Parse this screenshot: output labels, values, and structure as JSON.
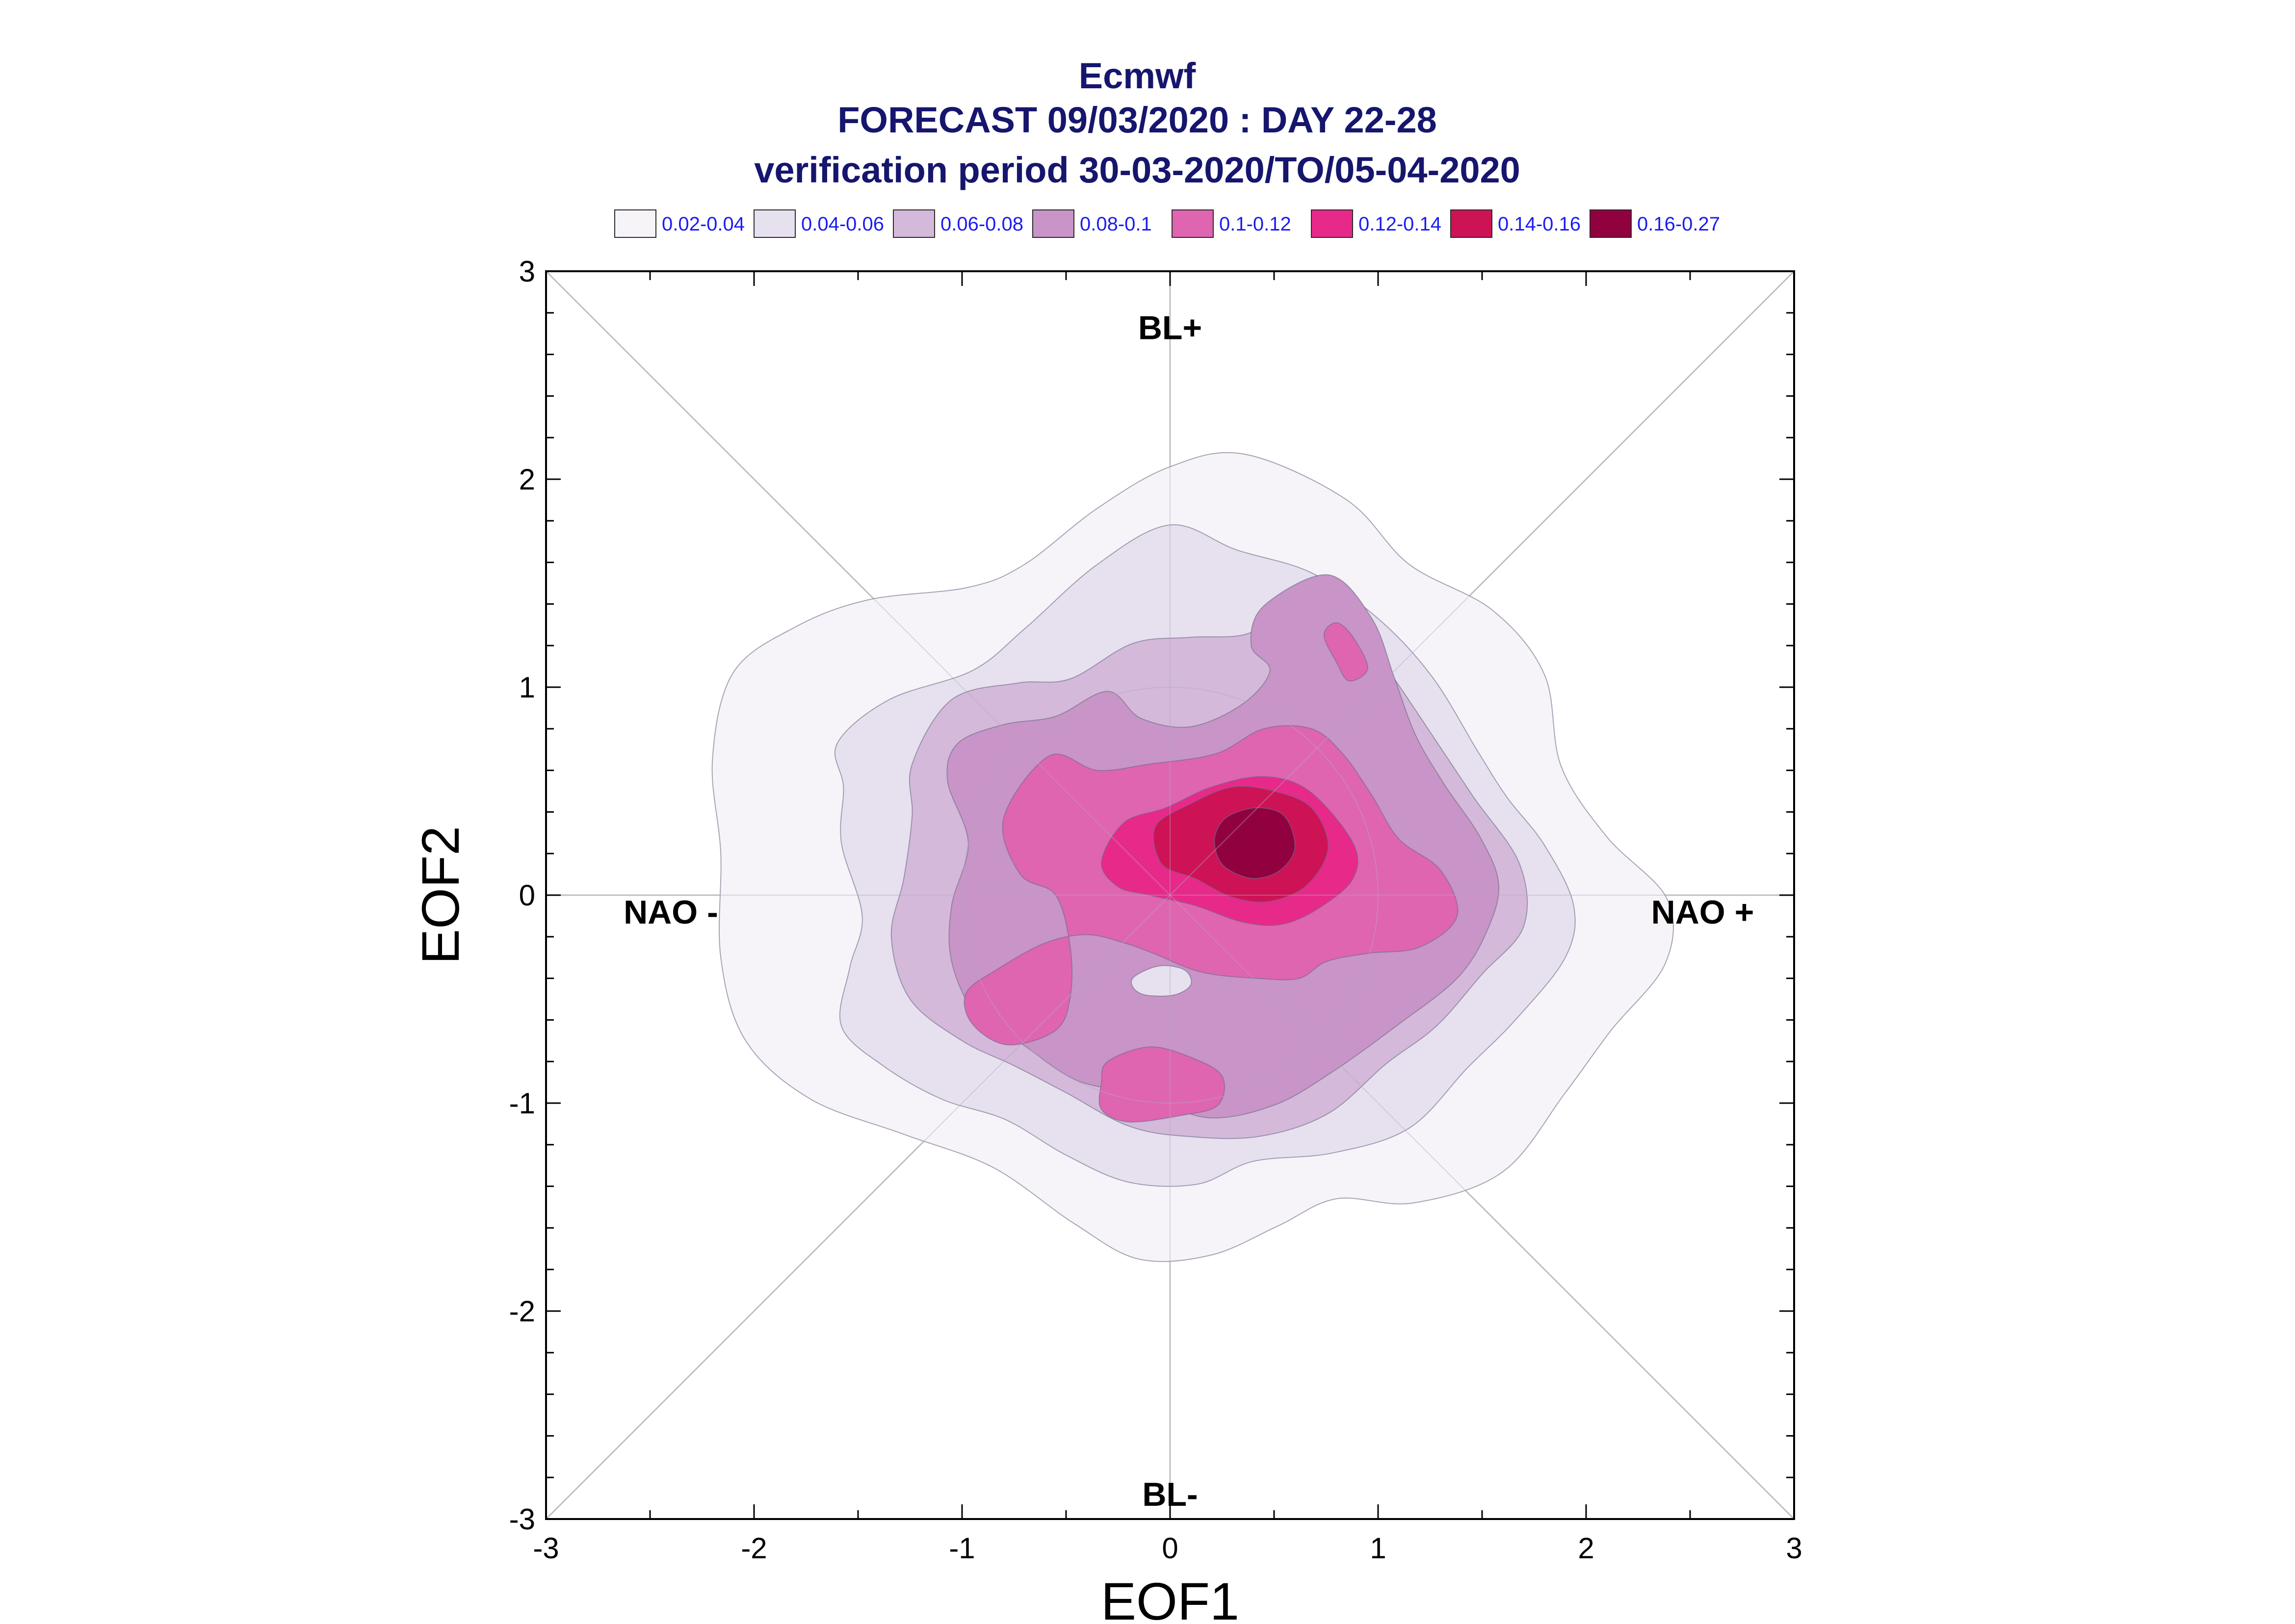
{
  "chart_data": {
    "type": "contour",
    "title": [
      "Ecmwf",
      "FORECAST 09/03/2020 : DAY 22-28",
      "verification period 30-03-2020/TO/05-04-2020"
    ],
    "xlabel": "EOF1",
    "ylabel": "EOF2",
    "xlim": [
      -3,
      3
    ],
    "ylim": [
      -3,
      3
    ],
    "xticks": [
      -3,
      -2,
      -1,
      0,
      1,
      2,
      3
    ],
    "yticks": [
      -3,
      -2,
      -1,
      0,
      1,
      2,
      3
    ],
    "xtick_labels": [
      "-3",
      "-2",
      "-1",
      "0",
      "1",
      "2",
      "3"
    ],
    "ytick_labels": [
      "-3",
      "-2",
      "-1",
      "0",
      "1",
      "2",
      "3"
    ],
    "legend": [
      {
        "label": "0.02-0.04",
        "color": "#f7f4f9"
      },
      {
        "label": "0.04-0.06",
        "color": "#e7e1ef"
      },
      {
        "label": "0.06-0.08",
        "color": "#d4b9da"
      },
      {
        "label": "0.08-0.1",
        "color": "#c994c7"
      },
      {
        "label": "0.1-0.12",
        "color": "#df65b0"
      },
      {
        "label": "0.12-0.14",
        "color": "#e7298a"
      },
      {
        "label": "0.14-0.16",
        "color": "#ce1256"
      },
      {
        "label": "0.16-0.27",
        "color": "#91003f"
      }
    ],
    "legend_position": "top",
    "region_labels": [
      {
        "text": "BL+",
        "x": 0,
        "y": 2.73
      },
      {
        "text": "BL-",
        "x": 0,
        "y": -2.88
      },
      {
        "text": "NAO -",
        "x": -2.4,
        "y": -0.08
      },
      {
        "text": "NAO +",
        "x": 2.56,
        "y": -0.08
      }
    ],
    "levels": [
      {
        "color": "#f7f4f9",
        "paths": [
          [
            [
              -2.1,
              1.07
            ],
            [
              -1.8,
              1.29
            ],
            [
              -1.45,
              1.42
            ],
            [
              -0.97,
              1.48
            ],
            [
              -0.7,
              1.59
            ],
            [
              -0.35,
              1.86
            ],
            [
              0,
              2.06
            ],
            [
              0.36,
              2.12
            ],
            [
              0.85,
              1.9
            ],
            [
              1.15,
              1.59
            ],
            [
              1.55,
              1.37
            ],
            [
              1.8,
              1.06
            ],
            [
              1.88,
              0.62
            ],
            [
              2.1,
              0.28
            ],
            [
              2.39,
              -0.02
            ],
            [
              2.38,
              -0.33
            ],
            [
              2.12,
              -0.65
            ],
            [
              1.9,
              -0.95
            ],
            [
              1.6,
              -1.33
            ],
            [
              1.17,
              -1.48
            ],
            [
              0.8,
              -1.46
            ],
            [
              0.52,
              -1.59
            ],
            [
              0.2,
              -1.73
            ],
            [
              -0.15,
              -1.75
            ],
            [
              -0.46,
              -1.58
            ],
            [
              -0.85,
              -1.31
            ],
            [
              -1.28,
              -1.15
            ],
            [
              -1.73,
              -0.98
            ],
            [
              -2.04,
              -0.7
            ],
            [
              -2.16,
              -0.3
            ],
            [
              -2.16,
              0.2
            ],
            [
              -2.2,
              0.65
            ]
          ]
        ]
      },
      {
        "color": "#e7e1ef",
        "paths": [
          [
            [
              -1.6,
              0.73
            ],
            [
              -1.35,
              0.94
            ],
            [
              -0.95,
              1.08
            ],
            [
              -0.7,
              1.28
            ],
            [
              -0.35,
              1.59
            ],
            [
              0,
              1.78
            ],
            [
              0.32,
              1.66
            ],
            [
              0.68,
              1.55
            ],
            [
              1,
              1.33
            ],
            [
              1.26,
              1.05
            ],
            [
              1.48,
              0.69
            ],
            [
              1.62,
              0.47
            ],
            [
              1.8,
              0.24
            ],
            [
              1.94,
              -0.05
            ],
            [
              1.9,
              -0.3
            ],
            [
              1.66,
              -0.6
            ],
            [
              1.43,
              -0.83
            ],
            [
              1.15,
              -1.12
            ],
            [
              0.78,
              -1.24
            ],
            [
              0.4,
              -1.28
            ],
            [
              0.13,
              -1.39
            ],
            [
              -0.2,
              -1.38
            ],
            [
              -0.5,
              -1.25
            ],
            [
              -0.79,
              -1.08
            ],
            [
              -1.1,
              -0.98
            ],
            [
              -1.38,
              -0.82
            ],
            [
              -1.58,
              -0.63
            ],
            [
              -1.54,
              -0.35
            ],
            [
              -1.48,
              -0.1
            ],
            [
              -1.58,
              0.25
            ],
            [
              -1.57,
              0.52
            ]
          ]
        ]
      },
      {
        "color": "#d4b9da",
        "paths": [
          [
            [
              -1.24,
              0.63
            ],
            [
              -1.05,
              0.94
            ],
            [
              -0.73,
              1.02
            ],
            [
              -0.48,
              1.04
            ],
            [
              -0.18,
              1.21
            ],
            [
              0.1,
              1.24
            ],
            [
              0.38,
              1.26
            ],
            [
              0.58,
              1.42
            ],
            [
              0.85,
              1.34
            ],
            [
              1.05,
              1.08
            ],
            [
              1.26,
              0.77
            ],
            [
              1.46,
              0.47
            ],
            [
              1.68,
              0.15
            ],
            [
              1.7,
              -0.15
            ],
            [
              1.5,
              -0.38
            ],
            [
              1.28,
              -0.63
            ],
            [
              1.04,
              -0.81
            ],
            [
              0.76,
              -1.05
            ],
            [
              0.43,
              -1.16
            ],
            [
              0.08,
              -1.16
            ],
            [
              -0.2,
              -1.11
            ],
            [
              -0.5,
              -0.95
            ],
            [
              -0.75,
              -0.82
            ],
            [
              -1,
              -0.7
            ],
            [
              -1.25,
              -0.5
            ],
            [
              -1.34,
              -0.2
            ],
            [
              -1.28,
              0.08
            ],
            [
              -1.24,
              0.38
            ]
          ]
        ]
      },
      {
        "color": "#c994c7",
        "paths": [
          [
            [
              -1.02,
              0.73
            ],
            [
              -0.8,
              0.82
            ],
            [
              -0.55,
              0.86
            ],
            [
              -0.3,
              0.98
            ],
            [
              -0.14,
              0.85
            ],
            [
              0.1,
              0.81
            ],
            [
              0.35,
              0.92
            ],
            [
              0.48,
              1.08
            ],
            [
              0.39,
              1.2
            ],
            [
              0.45,
              1.39
            ],
            [
              0.76,
              1.54
            ],
            [
              0.97,
              1.33
            ],
            [
              1.08,
              1.04
            ],
            [
              1.18,
              0.77
            ],
            [
              1.32,
              0.53
            ],
            [
              1.49,
              0.28
            ],
            [
              1.58,
              0.05
            ],
            [
              1.52,
              -0.18
            ],
            [
              1.38,
              -0.4
            ],
            [
              1.1,
              -0.62
            ],
            [
              0.78,
              -0.85
            ],
            [
              0.5,
              -1.01
            ],
            [
              0.18,
              -1.07
            ],
            [
              -0.13,
              -0.96
            ],
            [
              -0.45,
              -0.89
            ],
            [
              -0.72,
              -0.71
            ],
            [
              -0.93,
              -0.58
            ],
            [
              -1.05,
              -0.32
            ],
            [
              -1.05,
              -0.05
            ],
            [
              -0.97,
              0.25
            ],
            [
              -1.07,
              0.55
            ]
          ]
        ]
      },
      {
        "color": "#df65b0",
        "paths": [
          [
            [
              -0.58,
              0.67
            ],
            [
              -0.35,
              0.6
            ],
            [
              -0.1,
              0.63
            ],
            [
              0.22,
              0.68
            ],
            [
              0.45,
              0.8
            ],
            [
              0.68,
              0.8
            ],
            [
              0.83,
              0.68
            ],
            [
              0.97,
              0.48
            ],
            [
              1.1,
              0.27
            ],
            [
              1.3,
              0.12
            ],
            [
              1.38,
              -0.1
            ],
            [
              1.2,
              -0.25
            ],
            [
              0.95,
              -0.28
            ],
            [
              0.75,
              -0.32
            ],
            [
              0.62,
              -0.4
            ],
            [
              0.42,
              -0.4
            ],
            [
              0.15,
              -0.37
            ],
            [
              -0.08,
              -0.28
            ],
            [
              -0.22,
              -0.23
            ],
            [
              -0.4,
              -0.19
            ],
            [
              -0.6,
              -0.23
            ],
            [
              -0.82,
              -0.35
            ],
            [
              -0.98,
              -0.47
            ],
            [
              -0.95,
              -0.62
            ],
            [
              -0.78,
              -0.72
            ],
            [
              -0.55,
              -0.65
            ],
            [
              -0.48,
              -0.49
            ],
            [
              -0.48,
              -0.25
            ],
            [
              -0.55,
              0
            ],
            [
              -0.72,
              0.1
            ],
            [
              -0.8,
              0.37
            ]
          ],
          [
            [
              0.74,
              1.25
            ],
            [
              0.8,
              1.31
            ],
            [
              0.88,
              1.24
            ],
            [
              0.95,
              1.09
            ],
            [
              0.86,
              1.03
            ],
            [
              0.8,
              1.12
            ]
          ],
          [
            [
              -0.3,
              -0.8
            ],
            [
              -0.1,
              -0.73
            ],
            [
              0.1,
              -0.78
            ],
            [
              0.25,
              -0.87
            ],
            [
              0.23,
              -1.01
            ],
            [
              0.05,
              -1.06
            ],
            [
              -0.2,
              -1.09
            ],
            [
              -0.33,
              -1.03
            ],
            [
              -0.33,
              -0.9
            ]
          ]
        ]
      },
      {
        "color": "#e7298a",
        "paths": [
          [
            [
              -0.22,
              0.35
            ],
            [
              -0.02,
              0.42
            ],
            [
              0.2,
              0.52
            ],
            [
              0.45,
              0.57
            ],
            [
              0.67,
              0.5
            ],
            [
              0.88,
              0.25
            ],
            [
              0.88,
              0.08
            ],
            [
              0.72,
              -0.06
            ],
            [
              0.54,
              -0.14
            ],
            [
              0.35,
              -0.13
            ],
            [
              0.12,
              -0.05
            ],
            [
              -0.1,
              0
            ],
            [
              -0.25,
              0.04
            ],
            [
              -0.33,
              0.16
            ]
          ]
        ]
      },
      {
        "color": "#ce1256",
        "paths": [
          [
            [
              -0.07,
              0.33
            ],
            [
              0.1,
              0.44
            ],
            [
              0.3,
              0.52
            ],
            [
              0.5,
              0.5
            ],
            [
              0.68,
              0.42
            ],
            [
              0.76,
              0.23
            ],
            [
              0.66,
              0.05
            ],
            [
              0.48,
              -0.03
            ],
            [
              0.3,
              -0.01
            ],
            [
              0.12,
              0.08
            ],
            [
              -0.04,
              0.15
            ]
          ]
        ]
      },
      {
        "color": "#91003f",
        "paths": [
          [
            [
              0.22,
              0.3
            ],
            [
              0.28,
              0.38
            ],
            [
              0.42,
              0.42
            ],
            [
              0.55,
              0.38
            ],
            [
              0.6,
              0.23
            ],
            [
              0.53,
              0.12
            ],
            [
              0.4,
              0.08
            ],
            [
              0.27,
              0.13
            ],
            [
              0.22,
              0.21
            ]
          ]
        ]
      },
      {
        "color": "#e7e1ef",
        "paths": [
          [
            [
              -0.17,
              -0.39
            ],
            [
              -0.05,
              -0.34
            ],
            [
              0.07,
              -0.36
            ],
            [
              0.1,
              -0.43
            ],
            [
              0.02,
              -0.48
            ],
            [
              -0.12,
              -0.48
            ],
            [
              -0.18,
              -0.44
            ]
          ]
        ]
      }
    ]
  }
}
